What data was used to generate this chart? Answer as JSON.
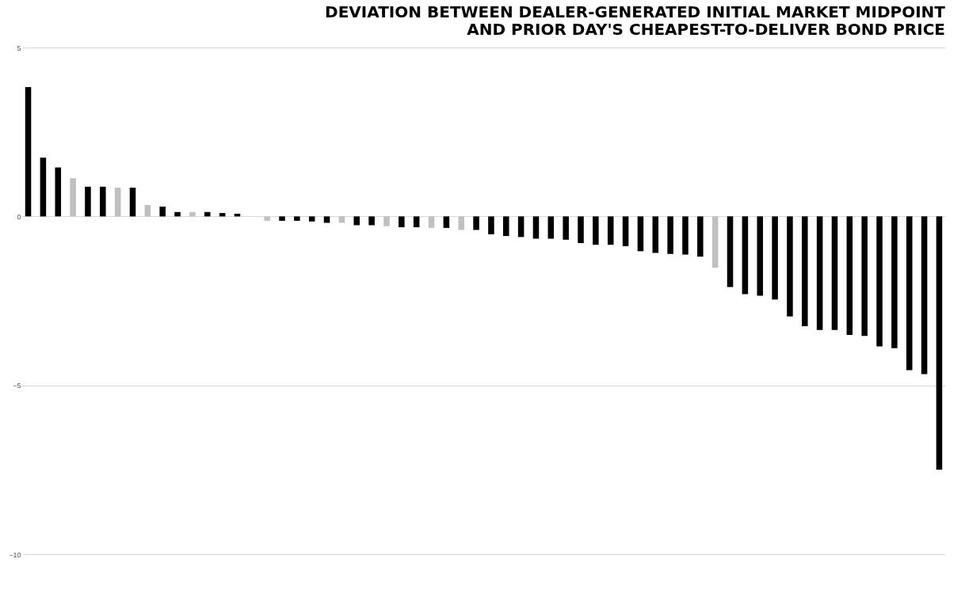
{
  "chart_data": {
    "type": "bar",
    "title": "DEVIATION BETWEEN DEALER-GENERATED INITIAL MARKET MIDPOINT\nAND PRIOR DAY'S CHEAPEST-TO-DELIVER BOND PRICE",
    "categories": [
      null,
      null,
      null,
      null,
      null,
      null,
      null,
      null,
      null,
      null,
      null,
      null,
      null,
      null,
      null,
      null,
      null,
      null,
      null,
      null,
      null,
      null,
      null,
      null,
      null,
      null,
      null,
      null,
      null,
      null,
      null,
      null,
      null,
      null,
      null,
      null,
      null,
      null,
      null,
      null,
      null,
      null,
      null,
      null,
      null,
      null,
      null,
      null,
      null,
      null,
      null,
      null,
      null,
      null,
      null,
      null,
      null,
      null,
      null,
      null,
      null,
      null
    ],
    "values": [
      3.83,
      1.74,
      1.45,
      1.13,
      0.88,
      0.88,
      0.85,
      0.85,
      0.34,
      0.29,
      0.13,
      0.13,
      0.13,
      0.1,
      0.08,
      0,
      -0.13,
      -0.13,
      -0.13,
      -0.15,
      -0.19,
      -0.19,
      -0.26,
      -0.26,
      -0.29,
      -0.32,
      -0.32,
      -0.34,
      -0.34,
      -0.4,
      -0.4,
      -0.53,
      -0.58,
      -0.61,
      -0.66,
      -0.66,
      -0.69,
      -0.79,
      -0.84,
      -0.84,
      -0.88,
      -1.03,
      -1.08,
      -1.11,
      -1.13,
      -1.19,
      -1.52,
      -2.09,
      -2.3,
      -2.35,
      -2.46,
      -2.96,
      -3.25,
      -3.36,
      -3.36,
      -3.51,
      -3.54,
      -3.85,
      -3.9,
      -4.55,
      -4.67,
      -7.5
    ],
    "colors": [
      "#000000",
      "#000000",
      "#000000",
      "#c0c0c0",
      "#000000",
      "#000000",
      "#c0c0c0",
      "#000000",
      "#c0c0c0",
      "#000000",
      "#000000",
      "#c0c0c0",
      "#000000",
      "#000000",
      "#000000",
      "#000000",
      "#c0c0c0",
      "#000000",
      "#000000",
      "#000000",
      "#000000",
      "#c0c0c0",
      "#000000",
      "#000000",
      "#c0c0c0",
      "#000000",
      "#000000",
      "#c0c0c0",
      "#000000",
      "#c0c0c0",
      "#000000",
      "#000000",
      "#000000",
      "#000000",
      "#000000",
      "#000000",
      "#000000",
      "#000000",
      "#000000",
      "#000000",
      "#000000",
      "#000000",
      "#000000",
      "#000000",
      "#000000",
      "#000000",
      "#c0c0c0",
      "#000000",
      "#000000",
      "#000000",
      "#000000",
      "#000000",
      "#000000",
      "#000000",
      "#000000",
      "#000000",
      "#000000",
      "#000000",
      "#000000",
      "#000000",
      "#000000",
      "#000000"
    ],
    "ylim": [
      -10,
      5
    ],
    "yticks": [
      5,
      0,
      -5,
      -10
    ],
    "grid": true
  }
}
